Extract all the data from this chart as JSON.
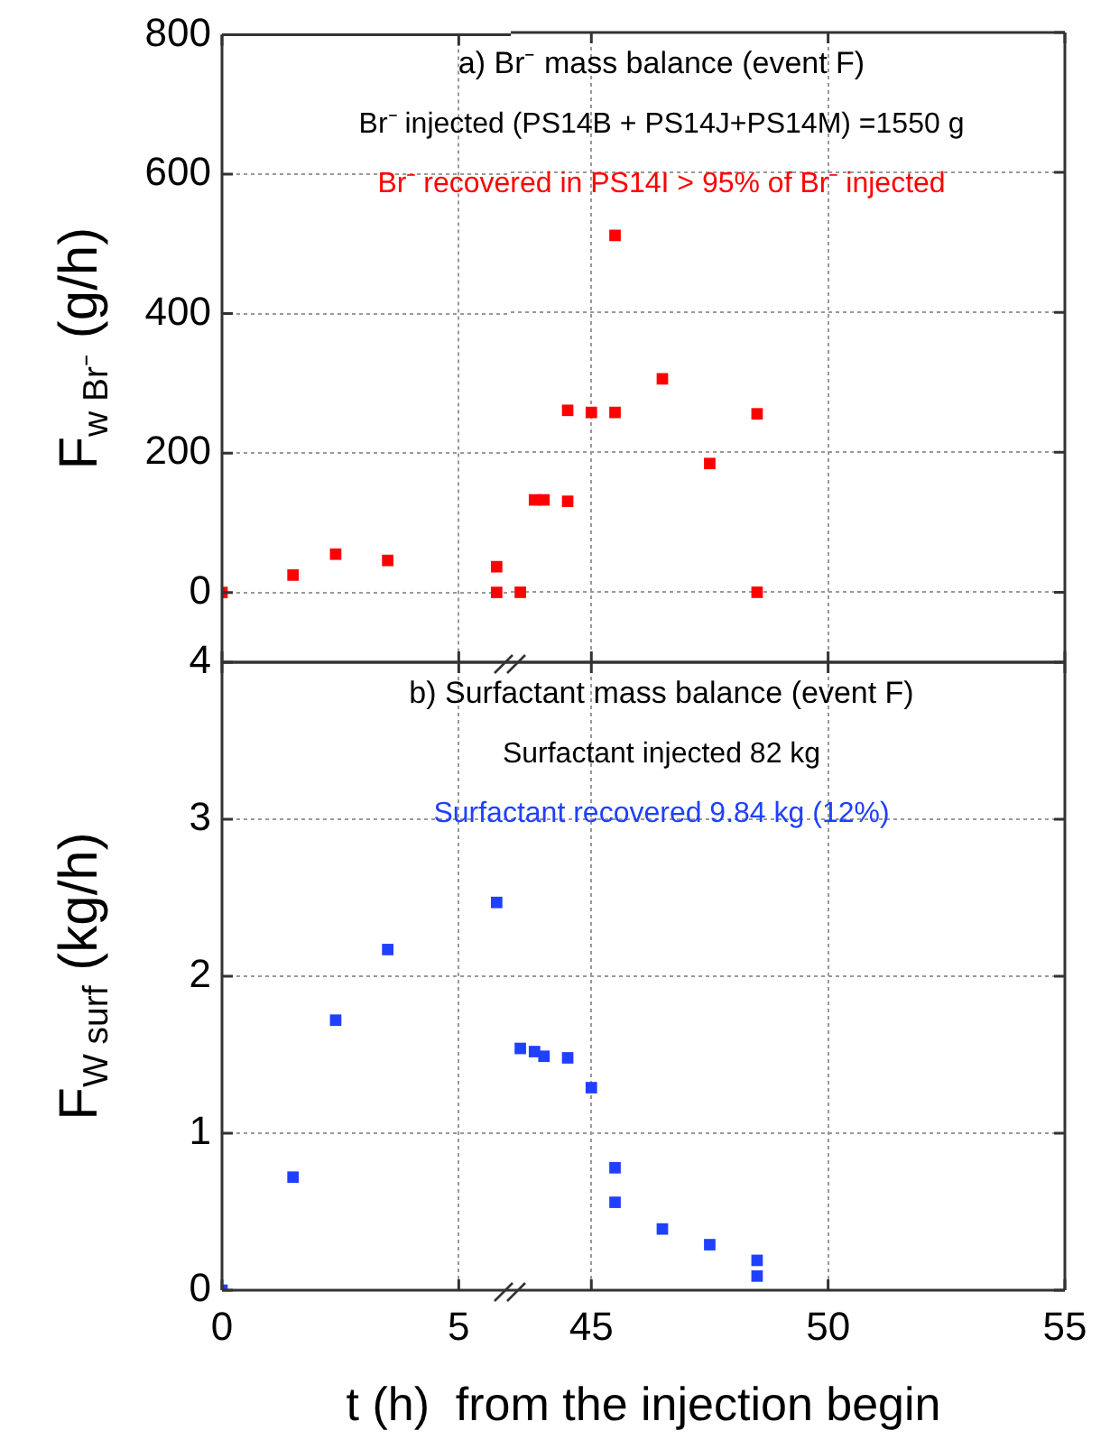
{
  "chart_data": [
    {
      "type": "scatter",
      "ylabel": "F$_{w Br⁻}$ (g/h)",
      "x": [
        0,
        1.5,
        2.4,
        3.5,
        5.8,
        5.8
      ],
      "series": [
        {
          "color": "#ff0000",
          "values": [
            0,
            25,
            55,
            46,
            37,
            0
          ]
        }
      ],
      "xlim": [
        0,
        6.1
      ],
      "xticks": [
        0,
        5
      ],
      "ylim": [
        -100,
        800
      ],
      "yticks": [
        0,
        200,
        400,
        600,
        800
      ],
      "grid": true,
      "marker": "square",
      "tick_labels": "y"
    },
    {
      "type": "scatter",
      "title": "a) Br⁻ mass balance (event F)",
      "subtitle": "Br⁻ injected (PS14B + PS14J+PS14M) =1550 g",
      "annotations": [
        "Br⁻ recovered in PS14I > 95% of Br⁻ injected"
      ],
      "x": [
        43.5,
        43.8,
        44,
        44.5,
        44.5,
        45,
        45.5,
        45.5,
        46.5,
        47.5,
        48.5,
        48.5
      ],
      "series": [
        {
          "color": "#ff0000",
          "values": [
            0,
            132,
            132,
            130,
            260,
            257,
            510,
            257,
            305,
            184,
            255,
            0
          ]
        }
      ],
      "xlim": [
        43.3,
        55
      ],
      "xticks": [
        45,
        50,
        55
      ],
      "ylim": [
        -100,
        800
      ],
      "yticks": [
        0,
        200,
        400,
        600,
        800
      ],
      "grid": true,
      "marker": "square",
      "tick_labels": false
    },
    {
      "type": "scatter",
      "ylabel": "F$_{W surf}$ (kg/h)",
      "x": [
        0,
        1.5,
        2.4,
        3.5,
        5.8
      ],
      "series": [
        {
          "color": "#2040ff",
          "values": [
            0,
            0.72,
            1.72,
            2.17,
            2.47
          ]
        }
      ],
      "xlim": [
        0,
        6.1
      ],
      "xticks": [
        0,
        5
      ],
      "ylim": [
        0,
        4
      ],
      "yticks": [
        0,
        1,
        2,
        3,
        4
      ],
      "grid": true,
      "marker": "square"
    },
    {
      "type": "scatter",
      "title": "b) Surfactant mass balance (event F)",
      "subtitle": "Surfactant injected 82 kg",
      "xlabel": "t (h)  from the injection begin",
      "annotations": [
        "Surfactant recovered 9.84 kg (12%)"
      ],
      "x": [
        43.5,
        43.8,
        44,
        44.5,
        45,
        45.5,
        45.5,
        46.5,
        47.5,
        48.5,
        48.5
      ],
      "series": [
        {
          "color": "#2040ff",
          "values": [
            1.54,
            1.52,
            1.49,
            1.48,
            1.29,
            0.78,
            0.56,
            0.39,
            0.29,
            0.19,
            0.09
          ]
        }
      ],
      "xlim": [
        43.3,
        55
      ],
      "xticks": [
        45,
        50,
        55
      ],
      "ylim": [
        0,
        4
      ],
      "yticks": [
        0,
        1,
        2,
        3,
        4
      ],
      "grid": true,
      "marker": "square",
      "tick_labels": "x"
    }
  ]
}
